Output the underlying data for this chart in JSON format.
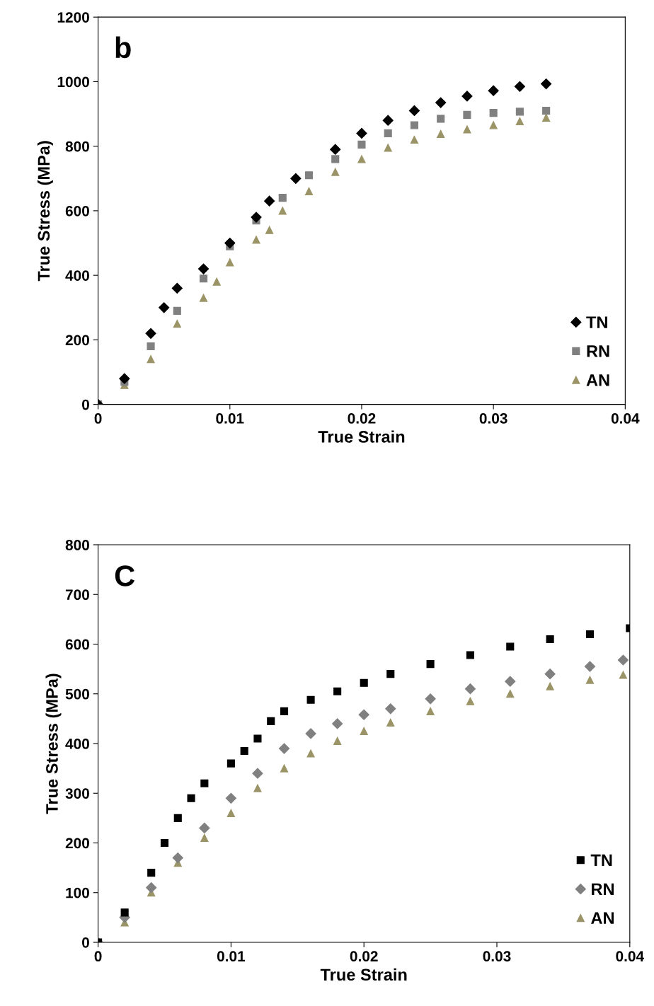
{
  "chart_data": [
    {
      "type": "scatter",
      "xlabel": "True Strain",
      "ylabel": "True Stress (MPa)",
      "annotations": [
        "b"
      ],
      "xlim": [
        0,
        0.04
      ],
      "xticks": [
        {
          "value": 0,
          "label": "0"
        },
        0.01,
        0.02,
        0.03,
        0.04
      ],
      "ylim": [
        0,
        1200
      ],
      "yticks": [
        0,
        200,
        400,
        600,
        800,
        1000,
        1200
      ],
      "grid": false,
      "legend": "bottom right",
      "series": [
        {
          "name": "TN",
          "color": "#000000",
          "marker": "diamond",
          "x": [
            0,
            0.002,
            0.004,
            0.005,
            0.006,
            0.008,
            0.01,
            0.012,
            0.013,
            0.015,
            0.018,
            0.02,
            0.022,
            0.024,
            0.026,
            0.028,
            0.03,
            0.032,
            0.034
          ],
          "values": [
            0,
            80,
            220,
            300,
            360,
            420,
            500,
            580,
            630,
            700,
            790,
            840,
            880,
            910,
            935,
            955,
            972,
            985,
            993
          ]
        },
        {
          "name": "RN",
          "color": "#808080",
          "marker": "square",
          "x": [
            0,
            0.002,
            0.004,
            0.006,
            0.008,
            0.01,
            0.012,
            0.014,
            0.016,
            0.018,
            0.02,
            0.022,
            0.024,
            0.026,
            0.028,
            0.03,
            0.032,
            0.034
          ],
          "values": [
            0,
            70,
            180,
            290,
            390,
            490,
            570,
            640,
            710,
            760,
            805,
            840,
            865,
            885,
            897,
            903,
            907,
            910
          ]
        },
        {
          "name": "AN",
          "color": "#9b9467",
          "marker": "triangle",
          "x": [
            0,
            0.002,
            0.004,
            0.006,
            0.008,
            0.009,
            0.01,
            0.012,
            0.013,
            0.014,
            0.016,
            0.018,
            0.02,
            0.022,
            0.024,
            0.026,
            0.028,
            0.03,
            0.032,
            0.034
          ],
          "values": [
            0,
            60,
            140,
            250,
            330,
            380,
            440,
            510,
            540,
            600,
            660,
            720,
            760,
            795,
            820,
            838,
            852,
            865,
            877,
            888
          ]
        }
      ]
    },
    {
      "type": "scatter",
      "xlabel": "True Strain",
      "ylabel": "True Stress (MPa)",
      "annotations": [
        "C"
      ],
      "xlim": [
        0,
        0.04
      ],
      "xticks": [
        {
          "value": 0,
          "label": "0"
        },
        0.01,
        0.02,
        0.03,
        0.04
      ],
      "ylim": [
        0,
        800
      ],
      "yticks": [
        0,
        100,
        200,
        300,
        400,
        500,
        600,
        700,
        800
      ],
      "grid": false,
      "legend": "bottom right",
      "series": [
        {
          "name": "TN",
          "color": "#000000",
          "marker": "square",
          "x": [
            0,
            0.002,
            0.004,
            0.005,
            0.006,
            0.007,
            0.008,
            0.01,
            0.011,
            0.012,
            0.013,
            0.014,
            0.016,
            0.018,
            0.02,
            0.022,
            0.025,
            0.028,
            0.031,
            0.034,
            0.037,
            0.04
          ],
          "values": [
            0,
            60,
            140,
            200,
            250,
            290,
            320,
            360,
            385,
            410,
            445,
            465,
            488,
            505,
            522,
            540,
            560,
            578,
            595,
            610,
            620,
            632
          ]
        },
        {
          "name": "RN",
          "color": "#808080",
          "marker": "diamond",
          "x": [
            0,
            0.002,
            0.004,
            0.006,
            0.008,
            0.01,
            0.012,
            0.014,
            0.016,
            0.018,
            0.02,
            0.022,
            0.025,
            0.028,
            0.031,
            0.034,
            0.037,
            0.0395
          ],
          "values": [
            0,
            50,
            110,
            170,
            230,
            290,
            340,
            390,
            420,
            440,
            458,
            470,
            490,
            510,
            525,
            540,
            555,
            568
          ]
        },
        {
          "name": "AN",
          "color": "#9b9467",
          "marker": "triangle",
          "x": [
            0,
            0.002,
            0.004,
            0.006,
            0.008,
            0.01,
            0.012,
            0.014,
            0.016,
            0.018,
            0.02,
            0.022,
            0.025,
            0.028,
            0.031,
            0.034,
            0.037,
            0.0395
          ],
          "values": [
            0,
            40,
            100,
            160,
            210,
            260,
            310,
            350,
            380,
            405,
            425,
            442,
            465,
            485,
            500,
            515,
            528,
            538
          ]
        }
      ]
    }
  ]
}
